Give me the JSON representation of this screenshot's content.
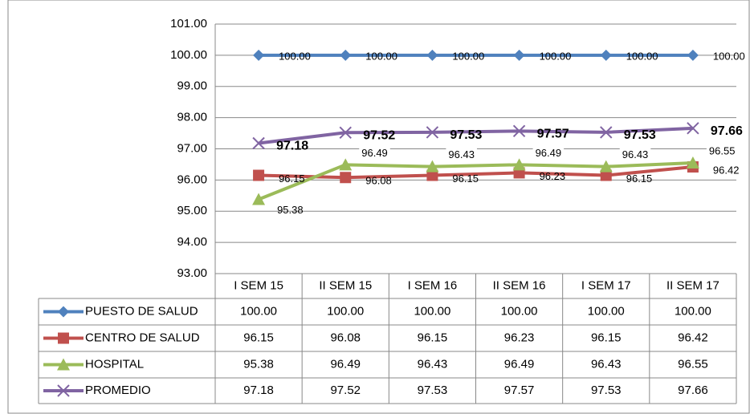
{
  "chart_data": {
    "type": "line",
    "categories": [
      "I SEM 15",
      "II SEM 15",
      "I SEM 16",
      "II SEM 16",
      "I SEM 17",
      "II SEM 17"
    ],
    "series": [
      {
        "name": "PUESTO DE SALUD",
        "color": "#4f81bd",
        "marker": "diamond",
        "values": [
          100,
          100,
          100,
          100,
          100,
          100
        ],
        "value_labels": [
          "100.00",
          "100.00",
          "100.00",
          "100.00",
          "100.00",
          "100.00"
        ]
      },
      {
        "name": "CENTRO DE SALUD",
        "color": "#c0504d",
        "marker": "square",
        "values": [
          96.15,
          96.08,
          96.15,
          96.23,
          96.15,
          96.42
        ],
        "value_labels": [
          "96.15",
          "96.08",
          "96.15",
          "96.23",
          "96.15",
          "96.42"
        ]
      },
      {
        "name": "HOSPITAL",
        "color": "#9bbb59",
        "marker": "triangle",
        "values": [
          95.38,
          96.49,
          96.43,
          96.49,
          96.43,
          96.55
        ],
        "value_labels": [
          "95.38",
          "96.49",
          "96.43",
          "96.49",
          "96.43",
          "96.55"
        ]
      },
      {
        "name": "PROMEDIO",
        "color": "#8064a2",
        "marker": "x",
        "values": [
          97.18,
          97.52,
          97.53,
          97.57,
          97.53,
          97.66
        ],
        "value_labels": [
          "97.18",
          "97.52",
          "97.53",
          "97.57",
          "97.53",
          "97.66"
        ]
      }
    ],
    "ylim": [
      93,
      101
    ],
    "yticks": [
      {
        "value": 93,
        "label": "93.00"
      },
      {
        "value": 94,
        "label": "94.00"
      },
      {
        "value": 95,
        "label": "95.00"
      },
      {
        "value": 96,
        "label": "96.00"
      },
      {
        "value": 97,
        "label": "97.00"
      },
      {
        "value": 98,
        "label": "98.00"
      },
      {
        "value": 99,
        "label": "99.00"
      },
      {
        "value": 100,
        "label": "100.00"
      },
      {
        "value": 101,
        "label": "101.00"
      }
    ],
    "grid": true
  }
}
